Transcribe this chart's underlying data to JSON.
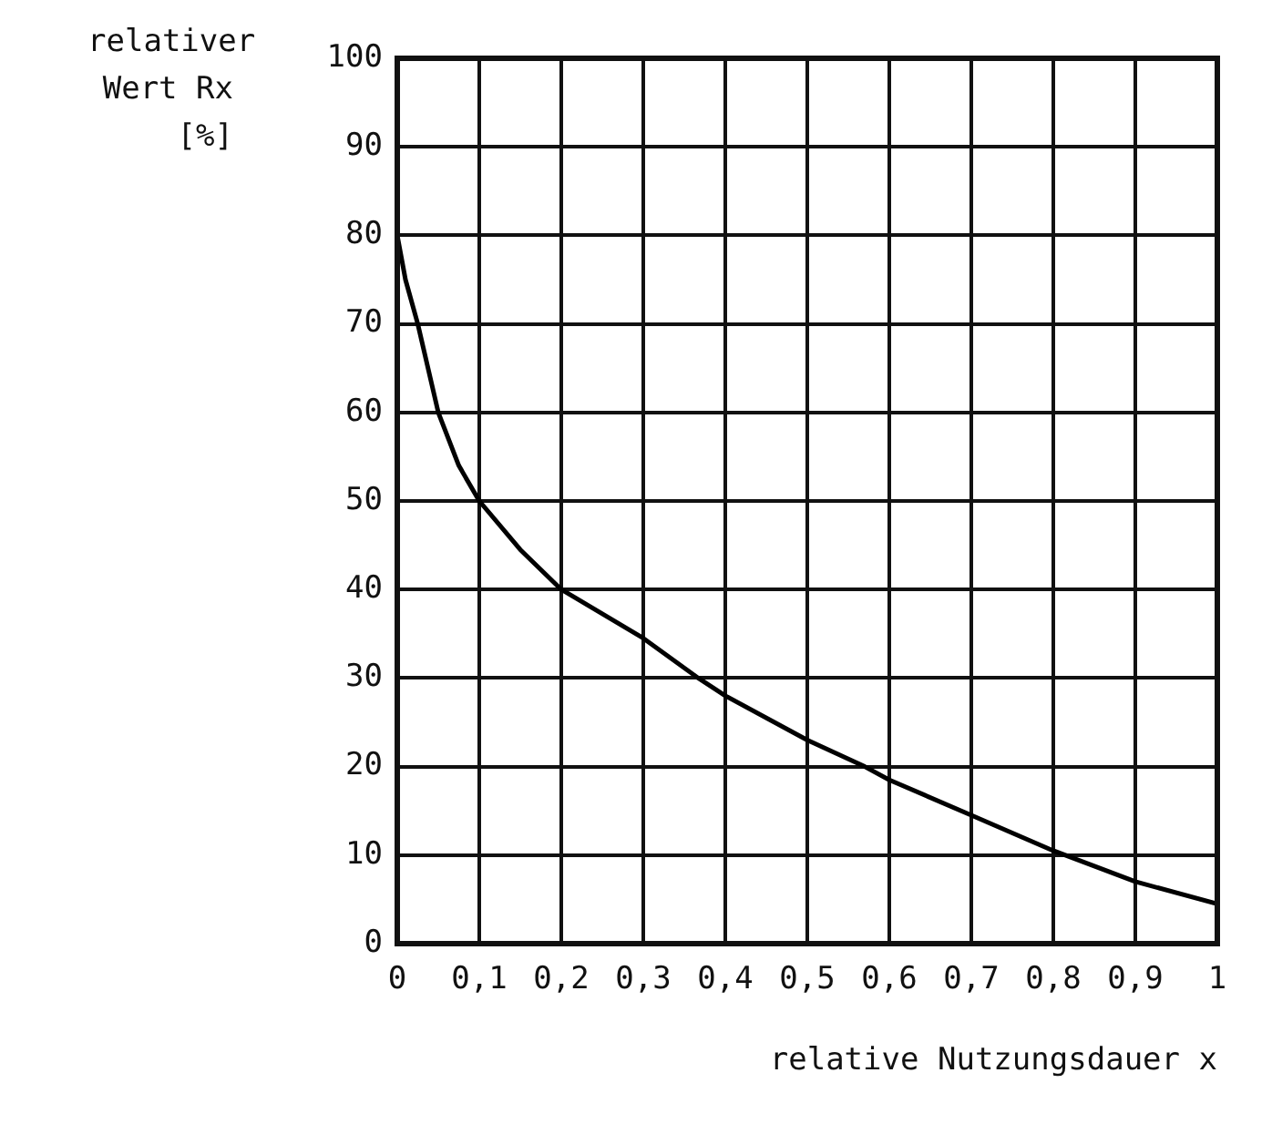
{
  "chart_data": {
    "type": "line",
    "xlabel": "relative Nutzungsdauer x",
    "ylabel": "relativer Wert Rx [%]",
    "x": [
      0,
      0.01,
      0.025,
      0.05,
      0.075,
      0.1,
      0.15,
      0.2,
      0.3,
      0.367,
      0.4,
      0.5,
      0.57,
      0.6,
      0.7,
      0.8,
      0.9,
      1
    ],
    "series": [
      {
        "color": "#000000",
        "values": [
          80,
          75,
          70,
          60,
          54,
          50,
          44.5,
          40,
          34.5,
          30,
          28,
          23,
          20,
          18.5,
          14.5,
          10.5,
          7,
          4.5
        ]
      }
    ],
    "xlim": [
      0,
      1
    ],
    "xticks": [
      0,
      {
        "value": 0.1,
        "label": "0,1"
      },
      {
        "value": 0.2,
        "label": "0,2"
      },
      {
        "value": 0.3,
        "label": "0,3"
      },
      {
        "value": 0.4,
        "label": "0,4"
      },
      {
        "value": 0.5,
        "label": "0,5"
      },
      {
        "value": 0.6,
        "label": "0,6"
      },
      {
        "value": 0.7,
        "label": "0,7"
      },
      {
        "value": 0.8,
        "label": "0,8"
      },
      {
        "value": 0.9,
        "label": "0,9"
      },
      1
    ],
    "ylim": [
      0,
      100
    ],
    "yticks": [
      0,
      10,
      20,
      30,
      40,
      50,
      60,
      70,
      80,
      90,
      100
    ],
    "grid": true,
    "legend": false,
    "marker": "none",
    "line_style": "solid"
  }
}
